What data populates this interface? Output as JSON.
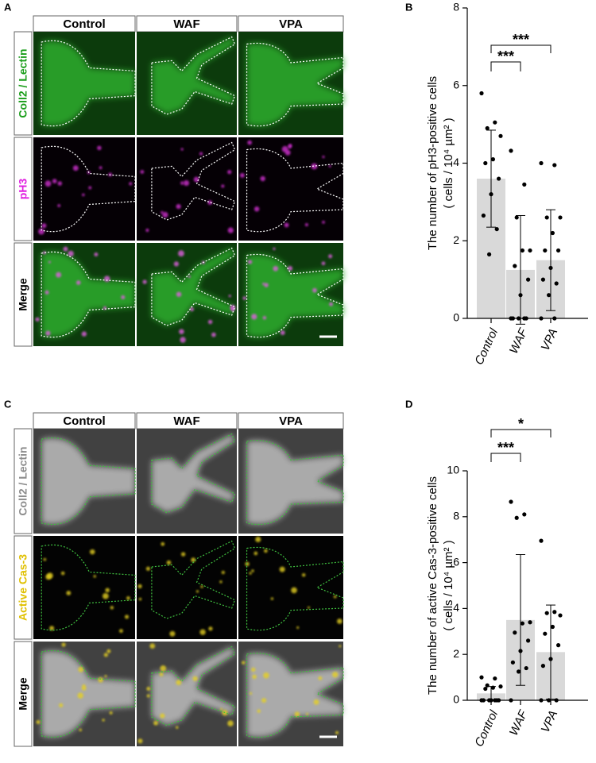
{
  "panels": [
    {
      "label": "A",
      "columns": [
        "Control",
        "WAF",
        "VPA"
      ],
      "rows": [
        {
          "text": "Coll2 / Lectin",
          "color": "#1a9e1a"
        },
        {
          "text": "pH3",
          "color": "#e020e0"
        },
        {
          "text": "Merge",
          "color": "#000000"
        }
      ]
    },
    {
      "label": "C",
      "columns": [
        "Control",
        "WAF",
        "VPA"
      ],
      "rows": [
        {
          "text": "Coll2 / Lectin",
          "color": "#8c8c8c"
        },
        {
          "text": "Active Cas-3",
          "color": "#e0c000"
        },
        {
          "text": "Merge",
          "color": "#000000"
        }
      ]
    }
  ],
  "chart_data": [
    {
      "type": "bar",
      "panel": "B",
      "y_label": "The number of pH3-positive cells",
      "y_unit": "( cells / 10⁴ µm² )",
      "categories": [
        "Control",
        "WAF",
        "VPA"
      ],
      "values": [
        3.6,
        1.25,
        1.5
      ],
      "errors": [
        1.25,
        1.4,
        1.3
      ],
      "points": [
        [
          5.8,
          5.05,
          4.9,
          4.7,
          4.1,
          4.0,
          3.6,
          3.2,
          2.65,
          2.3,
          1.65
        ],
        [
          4.32,
          3.45,
          2.6,
          1.75,
          1.75,
          1.35,
          1.0,
          0.6,
          0,
          0,
          0,
          0,
          0
        ],
        [
          4.0,
          3.95,
          2.6,
          2.6,
          2.2,
          1.75,
          1.75,
          1.3,
          1.0,
          0.9,
          0.6,
          0,
          0
        ]
      ],
      "color": "#d9d9d9",
      "point_color": "#000000",
      "ylim": [
        0,
        8
      ],
      "yticks": [
        0,
        2,
        4,
        6,
        8
      ],
      "significance": [
        "***",
        "***"
      ]
    },
    {
      "type": "bar",
      "panel": "D",
      "y_label": "The number of active Cas-3-positive cells",
      "y_unit": "( cells / 10⁴ µm² )",
      "categories": [
        "Control",
        "WAF",
        "VPA"
      ],
      "values": [
        0.3,
        3.5,
        2.1
      ],
      "errors": [
        0.3,
        2.85,
        2.05
      ],
      "points": [
        [
          1.0,
          0.95,
          0.65,
          0.6,
          0.55,
          0.5,
          0,
          0,
          0,
          0,
          0,
          0,
          0
        ],
        [
          8.65,
          8.1,
          7.95,
          3.4,
          3.35,
          2.95,
          2.6,
          2.15,
          1.65,
          1.4,
          1.25,
          0
        ],
        [
          6.95,
          3.85,
          3.8,
          3.7,
          3.2,
          2.9,
          2.4,
          1.8,
          1.5,
          0,
          0,
          0
        ]
      ],
      "color": "#d9d9d9",
      "point_color": "#000000",
      "ylim": [
        0,
        10
      ],
      "yticks": [
        0,
        2,
        4,
        6,
        8,
        10
      ],
      "significance": [
        "***",
        "*"
      ]
    }
  ]
}
